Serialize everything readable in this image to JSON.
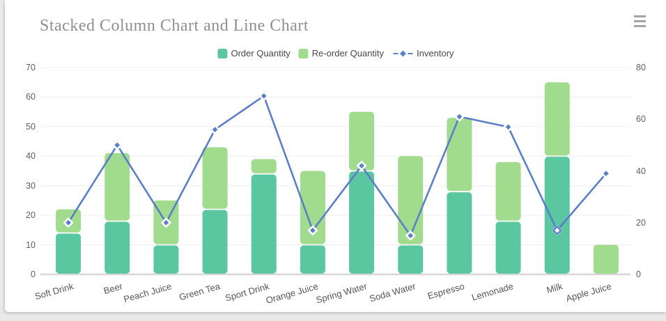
{
  "header": {
    "title": "Stacked Column Chart and Line Chart"
  },
  "menu": {
    "icon": "hamburger-menu-icon"
  },
  "colors": {
    "order_bar": "#5BC7A1",
    "reorder_bar": "#A0DB8E",
    "inventory_line": "#5B7EC6",
    "grid": "#ededed",
    "baseline": "#d6d6d6",
    "axis_text": "#5e5e5e",
    "title_text": "#8f8f8f"
  },
  "chart_data": {
    "type": "bar",
    "subtype": "stacked-column-with-line",
    "title": "Stacked Column Chart and Line Chart",
    "grid": true,
    "legend_position": "top",
    "categories": [
      "Soft Drink",
      "Beer",
      "Peach Juice",
      "Green Tea",
      "Sport Drink",
      "Orange Juice",
      "Spring Water",
      "Soda Water",
      "Espresso",
      "Lemonade",
      "Milk",
      "Apple Juice"
    ],
    "series": [
      {
        "name": "Order Quantity",
        "type": "column",
        "stack": "qty",
        "axis": "left",
        "color": "#5BC7A1",
        "values": [
          14,
          18,
          10,
          22,
          34,
          10,
          35,
          10,
          28,
          18,
          40,
          0
        ]
      },
      {
        "name": "Re-order Quantity",
        "type": "column",
        "stack": "qty",
        "axis": "left",
        "color": "#A0DB8E",
        "values": [
          8,
          23,
          15,
          21,
          5,
          25,
          20,
          30,
          25,
          20,
          25,
          10
        ]
      },
      {
        "name": "Inventory",
        "type": "line",
        "axis": "right",
        "color": "#5B7EC6",
        "marker": "diamond",
        "values": [
          20,
          50,
          20,
          56,
          69,
          17,
          42,
          15,
          61,
          57,
          17,
          39
        ],
        "hollow_marker_categories": [
          "Milk"
        ]
      }
    ],
    "left_axis": {
      "min": 0,
      "max": 70,
      "ticks": [
        0,
        10,
        20,
        30,
        40,
        50,
        60,
        70
      ]
    },
    "right_axis": {
      "min": 0,
      "max": 80,
      "ticks": [
        0,
        20,
        40,
        60,
        80
      ]
    }
  }
}
